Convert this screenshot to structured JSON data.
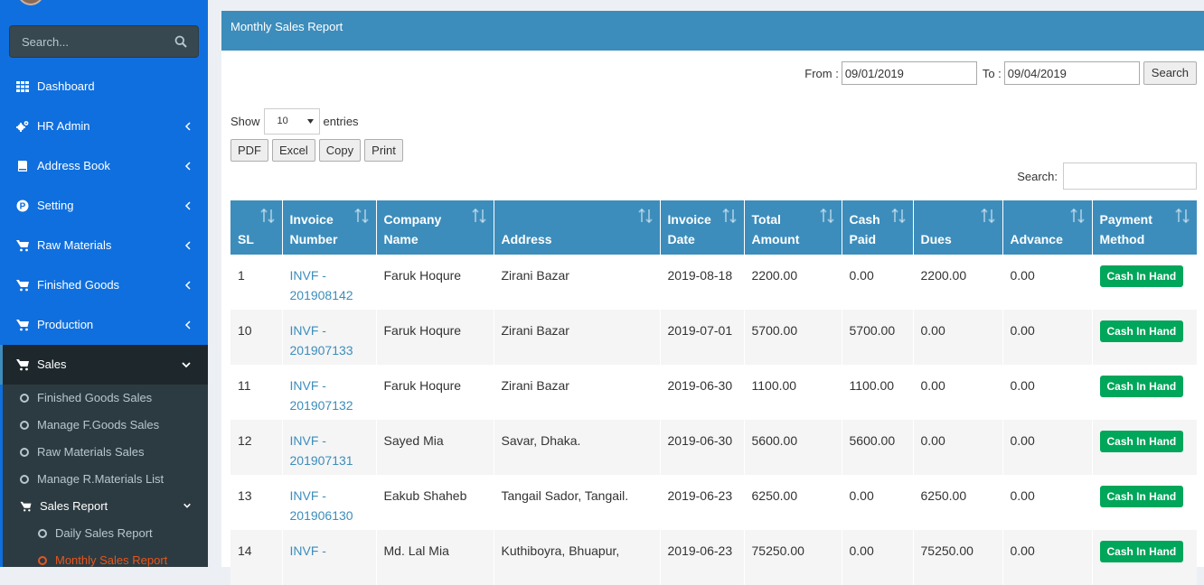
{
  "sidebar": {
    "search_placeholder": "Search...",
    "items": [
      {
        "label": "Dashboard",
        "icon": "grid-icon",
        "has_chevron": false
      },
      {
        "label": "HR Admin",
        "icon": "gears-icon",
        "has_chevron": true
      },
      {
        "label": "Address Book",
        "icon": "book-icon",
        "has_chevron": true
      },
      {
        "label": "Setting",
        "icon": "p-circle-icon",
        "has_chevron": true
      },
      {
        "label": "Raw Materials",
        "icon": "cart-icon",
        "has_chevron": true
      },
      {
        "label": "Finished Goods",
        "icon": "cart-icon",
        "has_chevron": true
      },
      {
        "label": "Production",
        "icon": "cart-icon",
        "has_chevron": true
      },
      {
        "label": "Sales",
        "icon": "cart-icon",
        "has_chevron": true
      }
    ],
    "sales_submenu": [
      "Finished Goods Sales",
      "Manage F.Goods Sales",
      "Raw Materials Sales",
      "Manage R.Materials List"
    ],
    "sales_report": {
      "label": "Sales Report",
      "items": [
        "Daily Sales Report",
        "Monthly Sales Report"
      ]
    }
  },
  "panel": {
    "title": "Monthly Sales Report",
    "from_label": "From :",
    "from_value": "09/01/2019",
    "to_label": "To :",
    "to_value": "09/04/2019",
    "search_button": "Search",
    "show_label": "Show",
    "entries_value": "10",
    "entries_label": "entries",
    "export_buttons": [
      "PDF",
      "Excel",
      "Copy",
      "Print"
    ],
    "table_search_label": "Search:"
  },
  "table": {
    "headers": [
      [
        "SL"
      ],
      [
        "Invoice",
        "Number"
      ],
      [
        "Company",
        "Name"
      ],
      [
        "Address"
      ],
      [
        "Invoice",
        "Date"
      ],
      [
        "Total",
        "Amount"
      ],
      [
        "Cash",
        "Paid"
      ],
      [
        "Dues"
      ],
      [
        "Advance"
      ],
      [
        "Payment",
        "Method"
      ]
    ],
    "rows": [
      {
        "sl": "1",
        "inv1": "INVF -",
        "inv2": "201908142",
        "company": "Faruk Hoqure",
        "address": "Zirani Bazar",
        "date": "2019-08-18",
        "total": "2200.00",
        "paid": "0.00",
        "dues": "2200.00",
        "advance": "0.00",
        "method": "Cash In Hand"
      },
      {
        "sl": "10",
        "inv1": "INVF -",
        "inv2": "201907133",
        "company": "Faruk Hoqure",
        "address": "Zirani Bazar",
        "date": "2019-07-01",
        "total": "5700.00",
        "paid": "5700.00",
        "dues": "0.00",
        "advance": "0.00",
        "method": "Cash In Hand"
      },
      {
        "sl": "11",
        "inv1": "INVF -",
        "inv2": "201907132",
        "company": "Faruk Hoqure",
        "address": "Zirani Bazar",
        "date": "2019-06-30",
        "total": "1100.00",
        "paid": "1100.00",
        "dues": "0.00",
        "advance": "0.00",
        "method": "Cash In Hand"
      },
      {
        "sl": "12",
        "inv1": "INVF -",
        "inv2": "201907131",
        "company": "Sayed Mia",
        "address": "Savar, Dhaka.",
        "date": "2019-06-30",
        "total": "5600.00",
        "paid": "5600.00",
        "dues": "0.00",
        "advance": "0.00",
        "method": "Cash In Hand"
      },
      {
        "sl": "13",
        "inv1": "INVF -",
        "inv2": "201906130",
        "company": "Eakub Shaheb",
        "address": "Tangail Sador, Tangail.",
        "date": "2019-06-23",
        "total": "6250.00",
        "paid": "0.00",
        "dues": "6250.00",
        "advance": "0.00",
        "method": "Cash In Hand"
      },
      {
        "sl": "14",
        "inv1": "INVF -",
        "inv2": "",
        "company": "Md. Lal Mia",
        "address": "Kuthiboyra, Bhuapur,",
        "date": "2019-06-23",
        "total": "75250.00",
        "paid": "0.00",
        "dues": "75250.00",
        "advance": "0.00",
        "method": "Cash In Hand"
      }
    ]
  },
  "colors": {
    "sidebar_bg": "#0f6fde",
    "sidebar_active_bg": "#1e282c",
    "submenu_bg": "#2c3b41",
    "header_blue": "#3c8dbc",
    "badge_green": "#00a65a",
    "current_orange": "#e8551d"
  }
}
